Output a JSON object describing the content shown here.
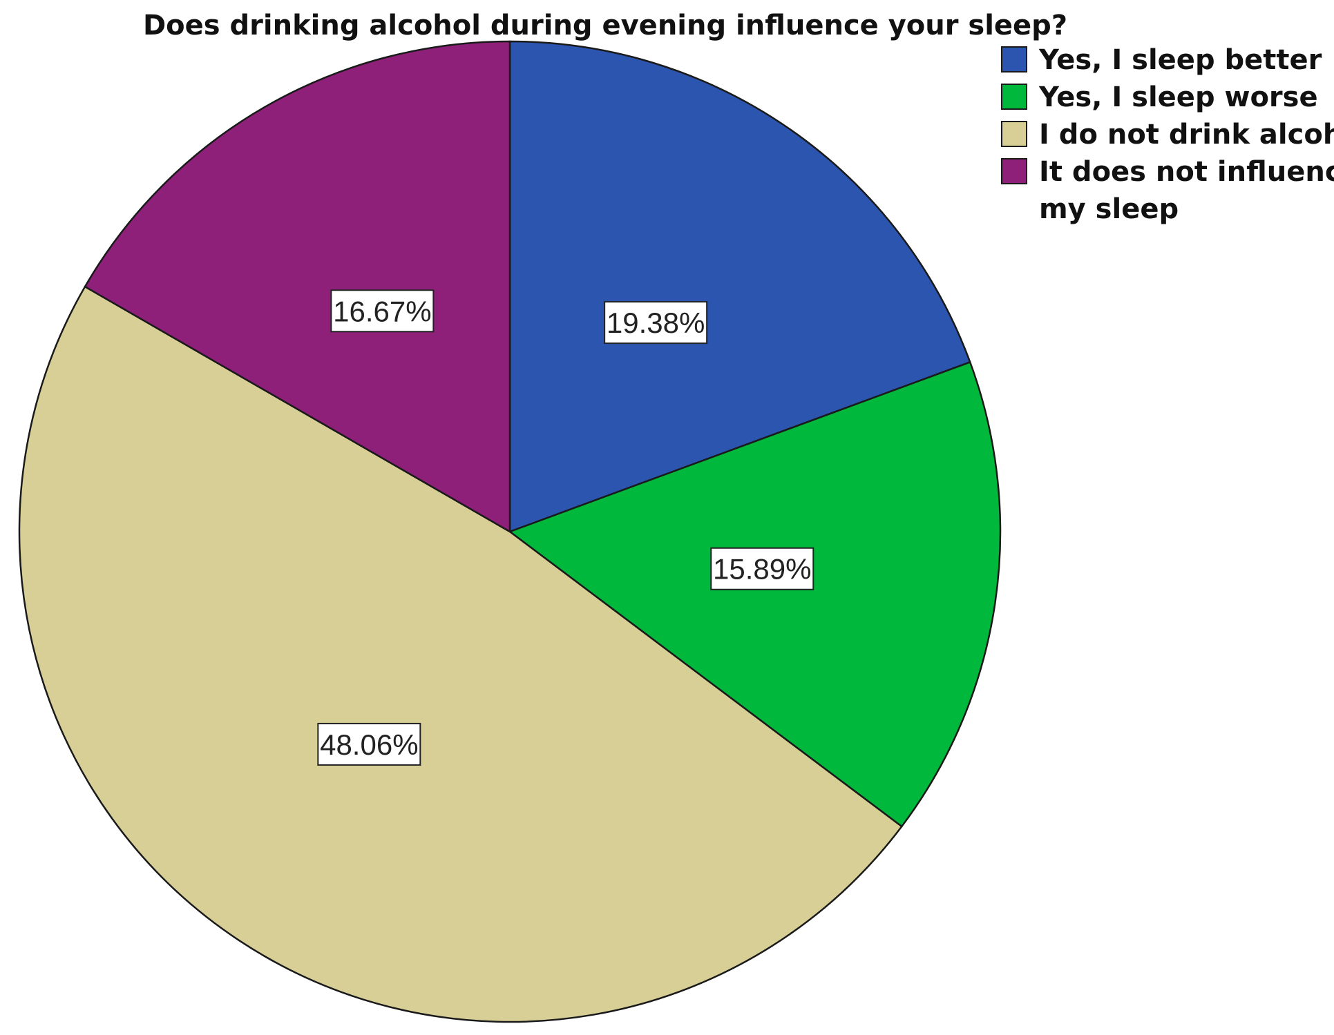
{
  "chart_data": {
    "type": "pie",
    "title": "Does drinking alcohol during evening influence your sleep?",
    "start_angle_deg": 0,
    "direction": "clockwise",
    "legend_position": "top-right",
    "slices": [
      {
        "label": "Yes, I sleep better",
        "value": 19.38,
        "display": "19.38%",
        "color": "#2c55b0"
      },
      {
        "label": "Yes, I sleep worse",
        "value": 15.89,
        "display": "15.89%",
        "color": "#00b83c"
      },
      {
        "label": "I do not drink alcohol",
        "value": 48.06,
        "display": "48.06%",
        "color": "#d7cf96"
      },
      {
        "label": "It does not influence my sleep",
        "value": 16.67,
        "display": "16.67%",
        "color": "#8e207a"
      }
    ],
    "legend_lines": [
      [
        "Yes, I sleep better"
      ],
      [
        "Yes, I sleep worse"
      ],
      [
        "I do not drink alcohol"
      ],
      [
        "It does not influence",
        "my sleep"
      ]
    ]
  }
}
